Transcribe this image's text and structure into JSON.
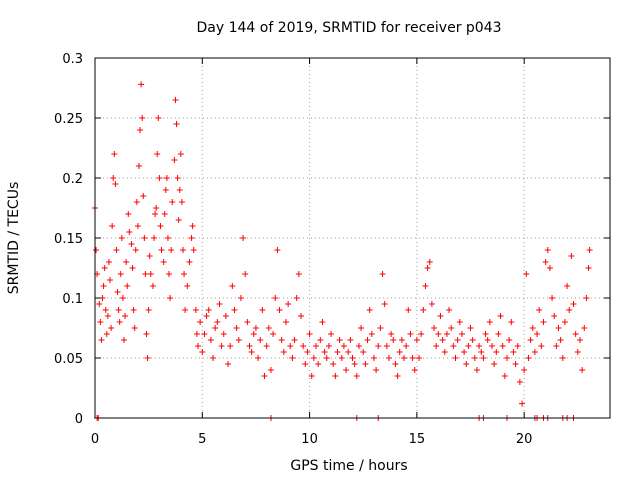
{
  "chart_data": {
    "type": "scatter",
    "title": "Day 144 of 2019, SRMTID for receiver p043",
    "xlabel": "GPS time / hours",
    "ylabel": "SRMTID / TECUs",
    "xlim": [
      0,
      24
    ],
    "ylim": [
      0,
      0.3
    ],
    "x_ticks": [
      0,
      5,
      10,
      15,
      20
    ],
    "x_tick_labels": [
      "0",
      "5",
      "10",
      "15",
      "20"
    ],
    "y_ticks": [
      0,
      0.05,
      0.1,
      0.15,
      0.2,
      0.25,
      0.3
    ],
    "y_tick_labels": [
      "0",
      "0.05",
      "0.1",
      "0.15",
      "0.2",
      "0.25",
      "0.3"
    ],
    "grid": true,
    "marker": "+",
    "series_color": "#ff0000",
    "series": [
      {
        "name": "SRMTID",
        "points": [
          [
            0.0,
            0.175
          ],
          [
            0.05,
            0.14
          ],
          [
            0.1,
            0.12
          ],
          [
            0.2,
            0.095
          ],
          [
            0.25,
            0.08
          ],
          [
            0.3,
            0.065
          ],
          [
            0.35,
            0.1
          ],
          [
            0.4,
            0.11
          ],
          [
            0.45,
            0.125
          ],
          [
            0.5,
            0.09
          ],
          [
            0.55,
            0.07
          ],
          [
            0.6,
            0.085
          ],
          [
            0.65,
            0.13
          ],
          [
            0.7,
            0.115
          ],
          [
            0.75,
            0.075
          ],
          [
            0.8,
            0.16
          ],
          [
            0.85,
            0.2
          ],
          [
            0.9,
            0.22
          ],
          [
            0.95,
            0.195
          ],
          [
            1.0,
            0.14
          ],
          [
            1.05,
            0.105
          ],
          [
            1.1,
            0.09
          ],
          [
            1.15,
            0.08
          ],
          [
            1.2,
            0.12
          ],
          [
            1.25,
            0.15
          ],
          [
            1.3,
            0.1
          ],
          [
            1.35,
            0.065
          ],
          [
            1.4,
            0.085
          ],
          [
            1.45,
            0.13
          ],
          [
            1.5,
            0.11
          ],
          [
            1.55,
            0.17
          ],
          [
            1.6,
            0.155
          ],
          [
            1.7,
            0.145
          ],
          [
            1.75,
            0.125
          ],
          [
            1.8,
            0.09
          ],
          [
            1.85,
            0.075
          ],
          [
            1.9,
            0.14
          ],
          [
            1.95,
            0.18
          ],
          [
            2.0,
            0.16
          ],
          [
            2.05,
            0.21
          ],
          [
            2.1,
            0.24
          ],
          [
            2.15,
            0.278
          ],
          [
            2.2,
            0.25
          ],
          [
            2.25,
            0.185
          ],
          [
            2.3,
            0.15
          ],
          [
            2.35,
            0.12
          ],
          [
            2.4,
            0.07
          ],
          [
            2.45,
            0.05
          ],
          [
            2.5,
            0.09
          ],
          [
            2.55,
            0.135
          ],
          [
            2.6,
            0.12
          ],
          [
            2.7,
            0.11
          ],
          [
            2.75,
            0.15
          ],
          [
            2.8,
            0.17
          ],
          [
            2.85,
            0.175
          ],
          [
            2.9,
            0.22
          ],
          [
            2.95,
            0.25
          ],
          [
            3.0,
            0.2
          ],
          [
            3.05,
            0.16
          ],
          [
            3.1,
            0.14
          ],
          [
            3.2,
            0.13
          ],
          [
            3.25,
            0.17
          ],
          [
            3.3,
            0.19
          ],
          [
            3.35,
            0.2
          ],
          [
            3.4,
            0.15
          ],
          [
            3.45,
            0.12
          ],
          [
            3.5,
            0.1
          ],
          [
            3.55,
            0.14
          ],
          [
            3.6,
            0.18
          ],
          [
            3.7,
            0.215
          ],
          [
            3.75,
            0.265
          ],
          [
            3.8,
            0.245
          ],
          [
            3.85,
            0.2
          ],
          [
            3.9,
            0.165
          ],
          [
            3.95,
            0.19
          ],
          [
            4.0,
            0.22
          ],
          [
            4.05,
            0.18
          ],
          [
            4.1,
            0.14
          ],
          [
            4.15,
            0.12
          ],
          [
            4.2,
            0.09
          ],
          [
            4.3,
            0.11
          ],
          [
            4.4,
            0.13
          ],
          [
            4.5,
            0.15
          ],
          [
            4.55,
            0.16
          ],
          [
            4.6,
            0.14
          ],
          [
            4.7,
            0.09
          ],
          [
            4.75,
            0.07
          ],
          [
            4.8,
            0.06
          ],
          [
            4.9,
            0.08
          ],
          [
            5.0,
            0.055
          ],
          [
            5.1,
            0.07
          ],
          [
            5.2,
            0.085
          ],
          [
            5.3,
            0.09
          ],
          [
            5.4,
            0.065
          ],
          [
            5.5,
            0.05
          ],
          [
            5.6,
            0.075
          ],
          [
            5.7,
            0.08
          ],
          [
            5.8,
            0.095
          ],
          [
            5.9,
            0.06
          ],
          [
            6.0,
            0.07
          ],
          [
            6.1,
            0.085
          ],
          [
            6.2,
            0.045
          ],
          [
            6.3,
            0.06
          ],
          [
            6.4,
            0.11
          ],
          [
            6.5,
            0.09
          ],
          [
            6.6,
            0.075
          ],
          [
            6.7,
            0.065
          ],
          [
            6.8,
            0.1
          ],
          [
            6.9,
            0.15
          ],
          [
            7.0,
            0.12
          ],
          [
            7.1,
            0.08
          ],
          [
            7.2,
            0.06
          ],
          [
            7.3,
            0.055
          ],
          [
            7.4,
            0.07
          ],
          [
            7.5,
            0.075
          ],
          [
            7.6,
            0.05
          ],
          [
            7.7,
            0.065
          ],
          [
            7.8,
            0.09
          ],
          [
            7.9,
            0.035
          ],
          [
            8.0,
            0.06
          ],
          [
            8.1,
            0.075
          ],
          [
            8.2,
            0.04
          ],
          [
            8.3,
            0.07
          ],
          [
            8.4,
            0.1
          ],
          [
            8.5,
            0.14
          ],
          [
            8.6,
            0.09
          ],
          [
            8.7,
            0.065
          ],
          [
            8.8,
            0.055
          ],
          [
            8.9,
            0.08
          ],
          [
            9.0,
            0.095
          ],
          [
            9.1,
            0.06
          ],
          [
            9.2,
            0.05
          ],
          [
            9.3,
            0.065
          ],
          [
            9.4,
            0.1
          ],
          [
            9.5,
            0.12
          ],
          [
            9.6,
            0.085
          ],
          [
            9.7,
            0.06
          ],
          [
            9.8,
            0.045
          ],
          [
            9.9,
            0.055
          ],
          [
            10.0,
            0.07
          ],
          [
            10.1,
            0.035
          ],
          [
            10.2,
            0.05
          ],
          [
            10.3,
            0.06
          ],
          [
            10.4,
            0.045
          ],
          [
            10.5,
            0.065
          ],
          [
            10.6,
            0.08
          ],
          [
            10.7,
            0.055
          ],
          [
            10.8,
            0.05
          ],
          [
            10.9,
            0.06
          ],
          [
            11.0,
            0.07
          ],
          [
            11.1,
            0.045
          ],
          [
            11.2,
            0.035
          ],
          [
            11.3,
            0.055
          ],
          [
            11.4,
            0.065
          ],
          [
            11.5,
            0.05
          ],
          [
            11.6,
            0.06
          ],
          [
            11.7,
            0.04
          ],
          [
            11.8,
            0.055
          ],
          [
            11.9,
            0.065
          ],
          [
            12.0,
            0.05
          ],
          [
            12.1,
            0.045
          ],
          [
            12.2,
            0.035
          ],
          [
            12.3,
            0.06
          ],
          [
            12.4,
            0.075
          ],
          [
            12.5,
            0.055
          ],
          [
            12.6,
            0.045
          ],
          [
            12.7,
            0.065
          ],
          [
            12.8,
            0.09
          ],
          [
            12.9,
            0.07
          ],
          [
            13.0,
            0.05
          ],
          [
            13.1,
            0.04
          ],
          [
            13.2,
            0.06
          ],
          [
            13.3,
            0.075
          ],
          [
            13.4,
            0.12
          ],
          [
            13.5,
            0.095
          ],
          [
            13.6,
            0.06
          ],
          [
            13.7,
            0.05
          ],
          [
            13.8,
            0.07
          ],
          [
            13.9,
            0.065
          ],
          [
            14.0,
            0.045
          ],
          [
            14.1,
            0.035
          ],
          [
            14.2,
            0.055
          ],
          [
            14.3,
            0.065
          ],
          [
            14.4,
            0.05
          ],
          [
            14.5,
            0.06
          ],
          [
            14.6,
            0.09
          ],
          [
            14.7,
            0.07
          ],
          [
            14.8,
            0.05
          ],
          [
            14.9,
            0.04
          ],
          [
            15.0,
            0.065
          ],
          [
            15.1,
            0.05
          ],
          [
            15.2,
            0.07
          ],
          [
            15.3,
            0.09
          ],
          [
            15.4,
            0.11
          ],
          [
            15.5,
            0.125
          ],
          [
            15.6,
            0.13
          ],
          [
            15.7,
            0.095
          ],
          [
            15.8,
            0.075
          ],
          [
            15.9,
            0.06
          ],
          [
            16.0,
            0.07
          ],
          [
            16.1,
            0.085
          ],
          [
            16.2,
            0.065
          ],
          [
            16.3,
            0.055
          ],
          [
            16.4,
            0.07
          ],
          [
            16.5,
            0.09
          ],
          [
            16.6,
            0.075
          ],
          [
            16.7,
            0.06
          ],
          [
            16.8,
            0.05
          ],
          [
            16.9,
            0.065
          ],
          [
            17.0,
            0.08
          ],
          [
            17.1,
            0.07
          ],
          [
            17.2,
            0.055
          ],
          [
            17.3,
            0.045
          ],
          [
            17.4,
            0.06
          ],
          [
            17.5,
            0.075
          ],
          [
            17.6,
            0.065
          ],
          [
            17.7,
            0.05
          ],
          [
            17.8,
            0.04
          ],
          [
            17.9,
            0.06
          ],
          [
            18.0,
            0.055
          ],
          [
            18.1,
            0.05
          ],
          [
            18.2,
            0.07
          ],
          [
            18.3,
            0.065
          ],
          [
            18.4,
            0.08
          ],
          [
            18.5,
            0.06
          ],
          [
            18.6,
            0.045
          ],
          [
            18.7,
            0.055
          ],
          [
            18.8,
            0.07
          ],
          [
            18.9,
            0.085
          ],
          [
            19.0,
            0.06
          ],
          [
            19.1,
            0.035
          ],
          [
            19.2,
            0.05
          ],
          [
            19.3,
            0.065
          ],
          [
            19.4,
            0.08
          ],
          [
            19.5,
            0.055
          ],
          [
            19.6,
            0.045
          ],
          [
            19.7,
            0.06
          ],
          [
            19.8,
            0.03
          ],
          [
            19.9,
            0.012
          ],
          [
            20.0,
            0.04
          ],
          [
            20.1,
            0.12
          ],
          [
            20.2,
            0.05
          ],
          [
            20.3,
            0.065
          ],
          [
            20.4,
            0.075
          ],
          [
            20.5,
            0.055
          ],
          [
            20.6,
            0.07
          ],
          [
            20.7,
            0.09
          ],
          [
            20.8,
            0.06
          ],
          [
            20.9,
            0.08
          ],
          [
            21.0,
            0.13
          ],
          [
            21.1,
            0.14
          ],
          [
            21.2,
            0.125
          ],
          [
            21.3,
            0.1
          ],
          [
            21.4,
            0.085
          ],
          [
            21.5,
            0.06
          ],
          [
            21.6,
            0.075
          ],
          [
            21.7,
            0.065
          ],
          [
            21.8,
            0.05
          ],
          [
            21.9,
            0.08
          ],
          [
            22.0,
            0.11
          ],
          [
            22.1,
            0.09
          ],
          [
            22.2,
            0.135
          ],
          [
            22.3,
            0.095
          ],
          [
            22.4,
            0.07
          ],
          [
            22.5,
            0.055
          ],
          [
            22.6,
            0.065
          ],
          [
            22.7,
            0.04
          ],
          [
            22.8,
            0.075
          ],
          [
            22.9,
            0.1
          ],
          [
            23.0,
            0.125
          ],
          [
            23.05,
            0.14
          ],
          [
            0.1,
            0.0
          ],
          [
            0.15,
            0.0
          ],
          [
            8.2,
            0.0
          ],
          [
            12.2,
            0.0
          ],
          [
            13.2,
            0.0
          ],
          [
            17.9,
            0.0
          ],
          [
            18.1,
            0.0
          ],
          [
            19.2,
            0.0
          ],
          [
            20.5,
            0.0
          ],
          [
            20.6,
            0.0
          ],
          [
            20.9,
            0.0
          ],
          [
            21.1,
            0.0
          ],
          [
            21.8,
            0.0
          ],
          [
            22.0,
            0.0
          ],
          [
            22.3,
            0.0
          ]
        ]
      }
    ]
  }
}
